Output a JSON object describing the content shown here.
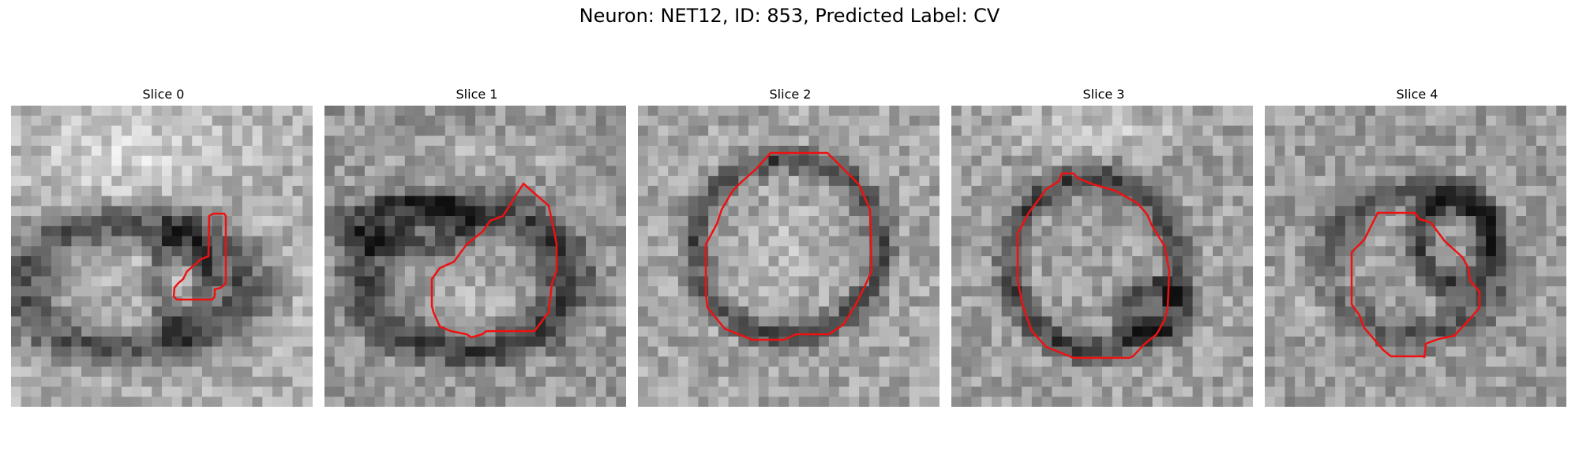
{
  "figure": {
    "title": "Neuron: NET12, ID: 853, Predicted Label: CV"
  },
  "panels": [
    {
      "title": "Slice 0"
    },
    {
      "title": "Slice 1"
    },
    {
      "title": "Slice 2"
    },
    {
      "title": "Slice 3"
    },
    {
      "title": "Slice 4"
    }
  ],
  "colors": {
    "contour": "#ee1111",
    "background": "#ffffff"
  }
}
